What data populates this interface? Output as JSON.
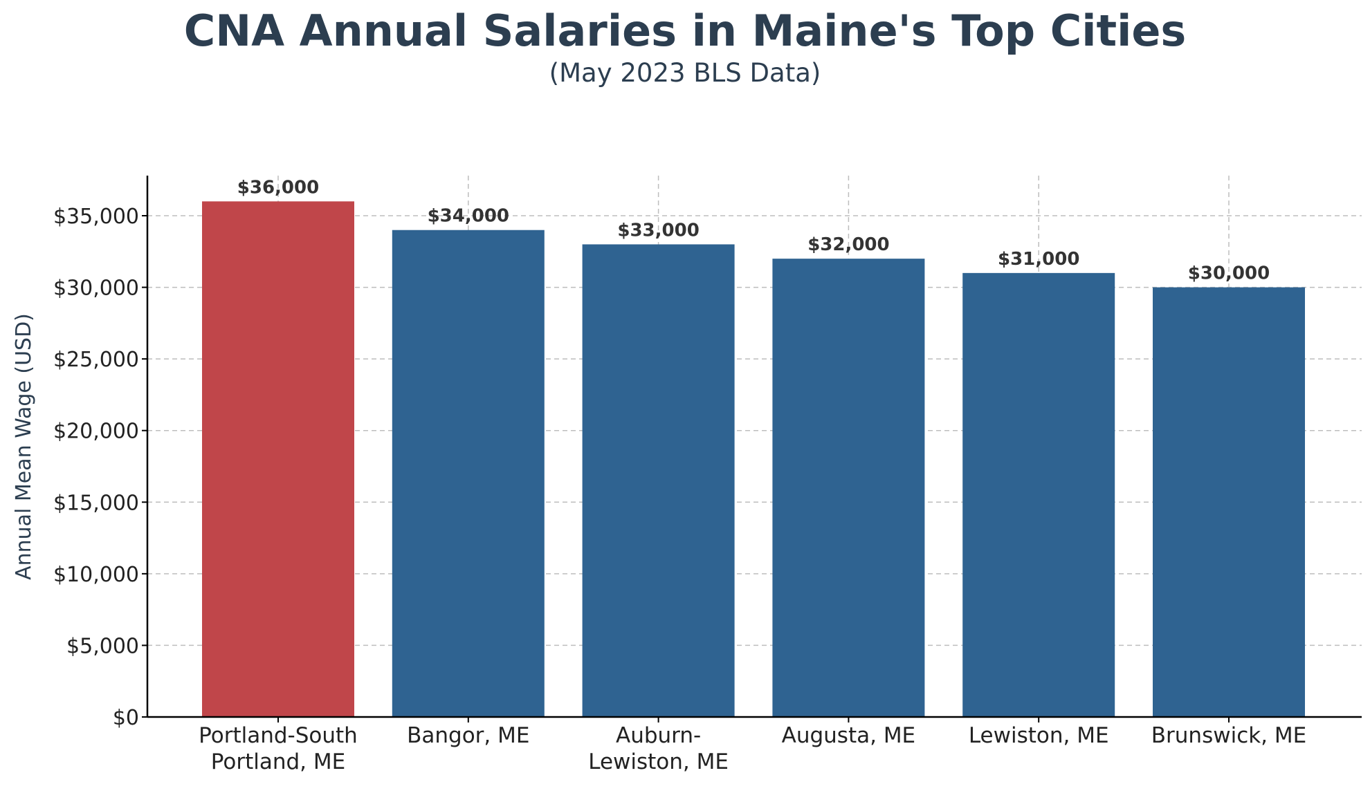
{
  "chart_data": {
    "type": "bar",
    "title": "CNA Annual Salaries in Maine's Top Cities",
    "subtitle": "(May 2023 BLS Data)",
    "xlabel": "",
    "ylabel": "Annual Mean Wage (USD)",
    "categories": [
      [
        "Portland-South",
        "Portland, ME"
      ],
      [
        "Bangor, ME"
      ],
      [
        "Auburn-",
        "Lewiston, ME"
      ],
      [
        "Augusta, ME"
      ],
      [
        "Lewiston, ME"
      ],
      [
        "Brunswick, ME"
      ]
    ],
    "values": [
      36000,
      34000,
      33000,
      32000,
      31000,
      30000
    ],
    "value_labels": [
      "$36,000",
      "$34,000",
      "$33,000",
      "$32,000",
      "$31,000",
      "$30,000"
    ],
    "bar_colors": [
      "#c0464a",
      "#2f6391",
      "#2f6391",
      "#2f6391",
      "#2f6391",
      "#2f6391"
    ],
    "ylim": [
      0,
      37800
    ],
    "yticks": [
      0,
      5000,
      10000,
      15000,
      20000,
      25000,
      30000,
      35000
    ],
    "ytick_labels": [
      "$0",
      "$5,000",
      "$10,000",
      "$15,000",
      "$20,000",
      "$25,000",
      "$30,000",
      "$35,000"
    ],
    "grid": true,
    "grid_style": "dashed",
    "legend": "none"
  }
}
